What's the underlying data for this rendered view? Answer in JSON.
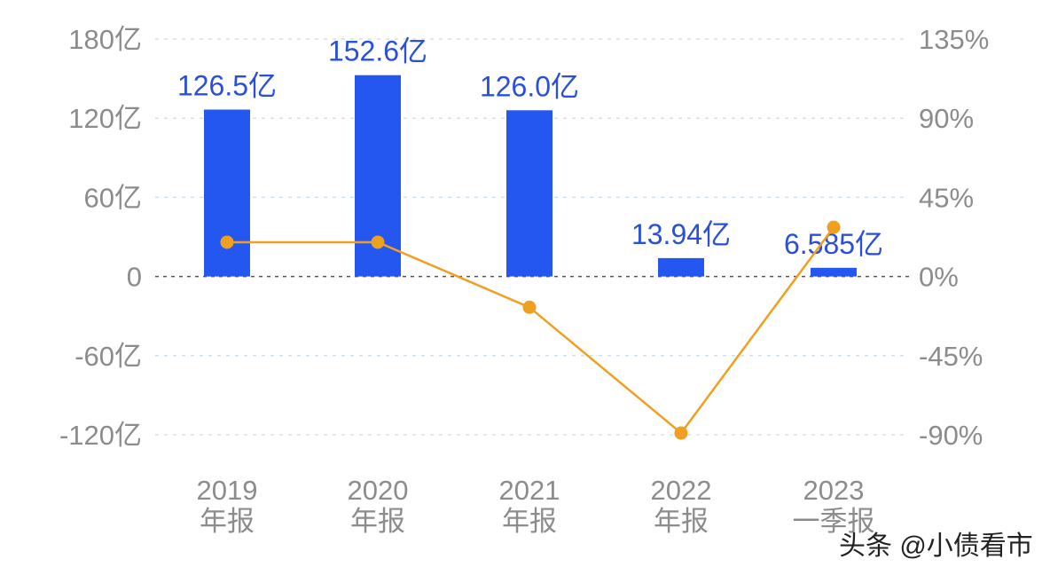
{
  "chart_data": {
    "type": "bar",
    "categories": [
      [
        "2019",
        "年报"
      ],
      [
        "2020",
        "年报"
      ],
      [
        "2021",
        "年报"
      ],
      [
        "2022",
        "年报"
      ],
      [
        "2023",
        "一季报"
      ]
    ],
    "series": [
      {
        "type": "bar",
        "axis": "left",
        "values": [
          126.5,
          152.6,
          126.0,
          13.94,
          6.585
        ],
        "labels": [
          "126.5亿",
          "152.6亿",
          "126.0亿",
          "13.94亿",
          "6.585亿"
        ],
        "color": "#2457f0"
      },
      {
        "type": "line",
        "axis": "right",
        "values": [
          19.5,
          19.5,
          -17.5,
          -89.0,
          28.0
        ],
        "color": "#f0a020"
      }
    ],
    "left_axis": {
      "min": -120,
      "max": 180,
      "ticks": [
        180,
        120,
        60,
        0,
        -60,
        -120
      ],
      "tick_labels": [
        "180亿",
        "120亿",
        "60亿",
        "0",
        "-60亿",
        "-120亿"
      ]
    },
    "right_axis": {
      "min": -90,
      "max": 135,
      "ticks": [
        135,
        90,
        45,
        0,
        -45,
        -90
      ],
      "tick_labels": [
        "135%",
        "90%",
        "45%",
        "0%",
        "-45%",
        "-90%"
      ]
    },
    "grid": true,
    "title": "",
    "xlabel": "",
    "ylabel": ""
  },
  "watermark": {
    "text": "头条 @小债看市"
  },
  "colors": {
    "bar": "#2457f0",
    "line": "#f0a020",
    "bar_label": "#2a4fd9",
    "tick_text": "#8c8c8c",
    "grid": "#cfe0ee",
    "zero_line": "#555555"
  }
}
